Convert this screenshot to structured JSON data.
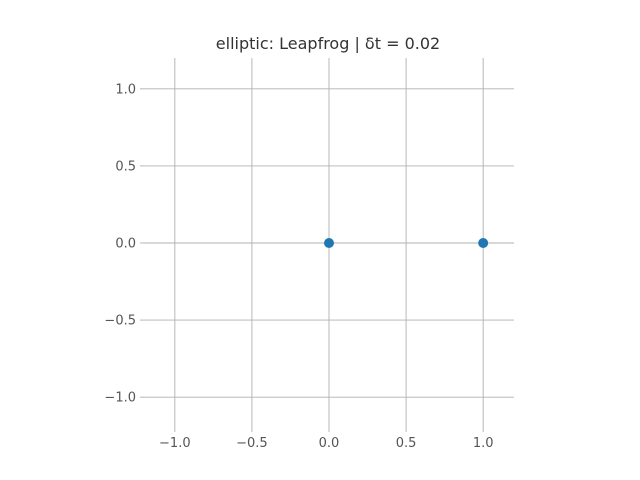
{
  "chart_data": {
    "type": "scatter",
    "title": "elliptic: Leapfrog | δt = 0.02",
    "xlim": [
      -1.2,
      1.2
    ],
    "ylim": [
      -1.2,
      1.2
    ],
    "grid": true,
    "x_ticks": [
      -1.0,
      -0.5,
      0.0,
      0.5,
      1.0
    ],
    "y_ticks": [
      -1.0,
      -0.5,
      0.0,
      0.5,
      1.0
    ],
    "x_tick_labels": [
      "−1.0",
      "−0.5",
      "0.0",
      "0.5",
      "1.0"
    ],
    "y_tick_labels": [
      "−1.0",
      "−0.5",
      "0.0",
      "0.5",
      "1.0"
    ],
    "series": [
      {
        "points": [
          {
            "x": 0.0,
            "y": 0.0
          },
          {
            "x": 1.0,
            "y": 0.0
          }
        ]
      }
    ],
    "colors": {
      "marker": "#1f77b4",
      "grid": "#b0b0b0",
      "text": "#555555"
    }
  }
}
